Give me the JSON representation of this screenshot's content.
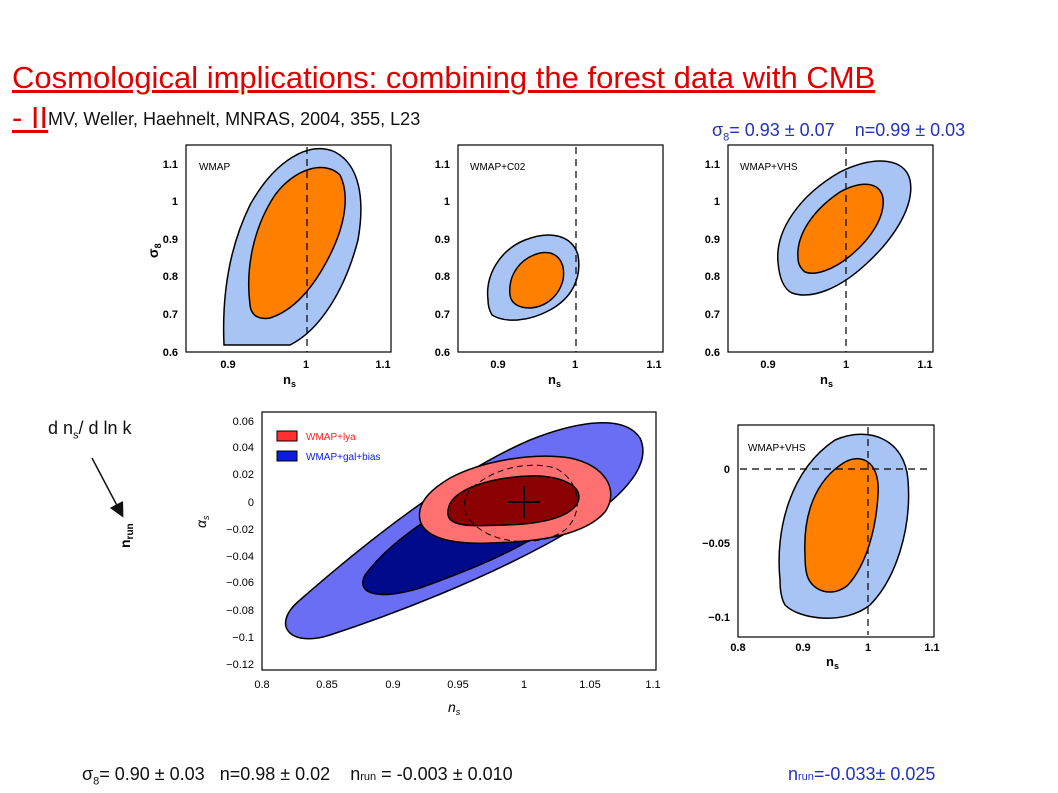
{
  "title_line1": "Cosmological implications: combining the forest data with CMB",
  "title_line2": "- II",
  "reference": "MV, Weller, Haehnelt,  MNRAS, 2004, 355, L23",
  "result_top": {
    "sigma_sym": "σ",
    "sigma_sub": "8",
    "sigma_text": "= 0.93 ± 0.07",
    "n_text": "n=0.99 ± 0.03"
  },
  "result_bottom": {
    "sigma_sym": "σ",
    "sigma_sub": "8",
    "sigma_text": "= 0.90 ± 0.03",
    "n_text": "n=0.98 ± 0.02",
    "nrun_n": "n",
    "nrun_sub": "run",
    "nrun_text": " = -0.003 ± 0.010"
  },
  "result_bottom_right": {
    "n": "n",
    "sub": "run",
    "text": "=-0.033± 0.025"
  },
  "annotation": {
    "text": "d n",
    "sub": "s",
    "tail": "/ d ln k",
    "target_n": "n",
    "target_sub": "run"
  },
  "panels": {
    "wmap": {
      "label": "WMAP",
      "ylabel_sym": "σ",
      "ylabel_sub": "8",
      "xlabel_sym": "n",
      "xlabel_sub": "s",
      "xticks": [
        "0.9",
        "1",
        "1.1"
      ],
      "yticks": [
        "1.1",
        "1",
        "0.9",
        "0.8",
        "0.7",
        "0.6"
      ]
    },
    "wmap_c02": {
      "label": "WMAP+C02",
      "xlabel_sym": "n",
      "xlabel_sub": "s",
      "xticks": [
        "0.9",
        "1",
        "1.1"
      ],
      "yticks": [
        "1.1",
        "1",
        "0.9",
        "0.8",
        "0.7",
        "0.6"
      ]
    },
    "wmap_vhs": {
      "label": "WMAP+VHS",
      "xlabel_sym": "n",
      "xlabel_sub": "s",
      "xticks": [
        "0.9",
        "1",
        "1.1"
      ],
      "yticks": [
        "1.1",
        "1",
        "0.9",
        "0.8",
        "0.7",
        "0.6"
      ]
    },
    "big": {
      "ylabel_sym": "α",
      "ylabel_sub": "s",
      "xlabel_sym": "n",
      "xlabel_sub": "s",
      "legend": [
        "WMAP+lya",
        "WMAP+gal+bias"
      ],
      "legend_colors": [
        "#ff3030",
        "#0a1ee0"
      ],
      "xticks": [
        "0.8",
        "0.85",
        "0.9",
        "0.95",
        "1",
        "1.05",
        "1.1"
      ],
      "yticks": [
        "0.06",
        "0.04",
        "0.02",
        "0",
        "−0.02",
        "−0.04",
        "−0.06",
        "−0.08",
        "−0.1",
        "−0.12"
      ]
    },
    "run_vhs": {
      "label": "WMAP+VHS",
      "xlabel_sym": "n",
      "xlabel_sub": "s",
      "xticks": [
        "0.8",
        "0.9",
        "1",
        "1.1"
      ],
      "yticks": [
        "0",
        "−0.05",
        "−0.1"
      ]
    }
  },
  "colors": {
    "title": "#e00000",
    "results": "#2233bb",
    "inner": "#ff8000",
    "outer": "#a8c4f4",
    "red_inner": "#8b0000",
    "red_outer": "#ff7070",
    "blue_inner": "#000a8a",
    "blue_outer": "#6a6ef5"
  }
}
